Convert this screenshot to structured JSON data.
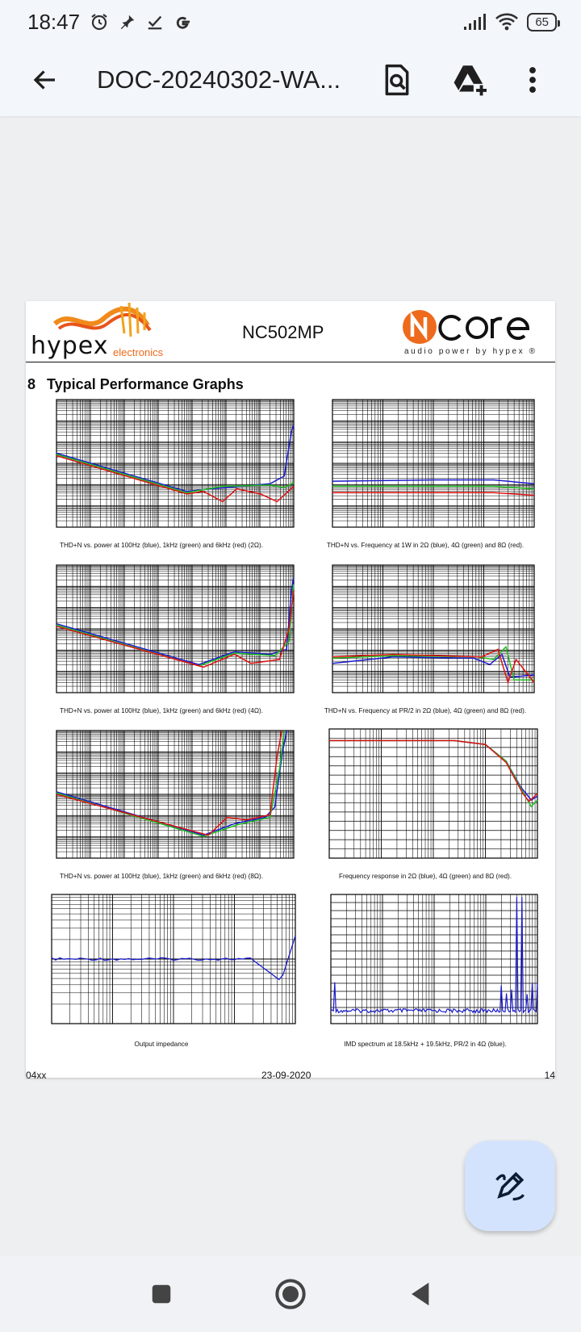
{
  "status_bar": {
    "time": "18:47",
    "left_icons": [
      "alarm-icon",
      "pin-icon",
      "check-icon",
      "google-icon"
    ],
    "right_icons": [
      "signal-icon",
      "wifi-icon"
    ],
    "battery": "65"
  },
  "app_bar": {
    "title": "DOC-20240302-WA...",
    "actions": [
      "back-arrow-icon",
      "document-search-icon",
      "add-to-drive-icon",
      "more-vert-icon"
    ]
  },
  "document": {
    "brand": "hypex",
    "brand_sub": "electronics",
    "model": "NC502MP",
    "ncore_tagline": "audio power by hypex ®",
    "section_number": "8",
    "section_title": "Typical Performance Graphs",
    "series_colors": {
      "blue": "#1a1acc",
      "green": "#22bb22",
      "red": "#dd1111",
      "teal": "#119999"
    },
    "captions": {
      "g1": "THD+N vs. power at 100Hz (blue), 1kHz (green) and 6kHz (red) (2Ω).",
      "g2": "THD+N vs. Frequency at 1W in 2Ω (blue), 4Ω (green) and 8Ω (red).",
      "g3": "THD+N vs. power at 100Hz (blue), 1kHz (green) and 6kHz (red) (4Ω).",
      "g4": "THD+N vs. Frequency at PR/2 in 2Ω (blue), 4Ω (green) and 8Ω (red).",
      "g5": "THD+N vs. power at 100Hz (blue), 1kHz (green) and 6kHz (red) (8Ω).",
      "g6": "Frequency response in 2Ω (blue), 4Ω (green) and 8Ω (red).",
      "g7": "Output impedance",
      "g8": "IMD spectrum at 18.5kHz + 19.5kHz, PR/2 in 4Ω (blue)."
    },
    "footer": {
      "left": "04xx",
      "center": "23-09-2020",
      "right": "14"
    }
  },
  "fab": {
    "icon": "edit-pen-icon"
  },
  "nav_bar": {
    "buttons": [
      "recents-square-icon",
      "home-circle-icon",
      "back-triangle-icon"
    ]
  }
}
